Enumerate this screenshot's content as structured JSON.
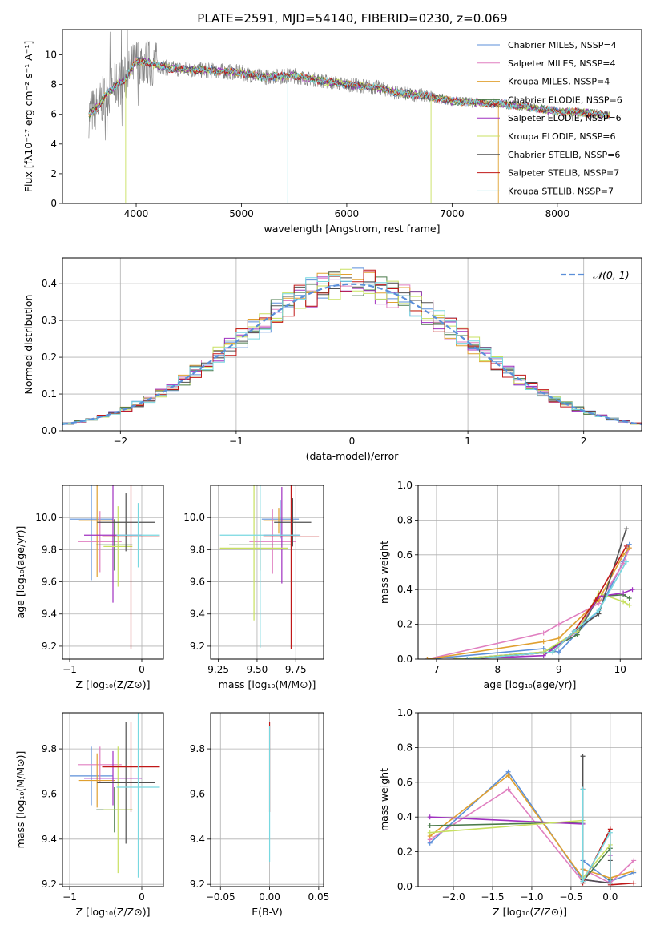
{
  "colors": {
    "c1": "#5b8fd9",
    "c2": "#e07fc0",
    "c3": "#e0a030",
    "c4": "#4a7a4a",
    "c5": "#a030c0",
    "c6": "#c8e060",
    "c7": "#505050",
    "c8": "#c01818",
    "c9": "#78d8e0",
    "data": "#808080",
    "normal": "#5b8fd9"
  },
  "chart_data": [
    {
      "type": "line",
      "id": "spectrum",
      "title": "PLATE=2591, MJD=54140, FIBERID=0230, z=0.069",
      "xlabel": "wavelength [Angstrom, rest frame]",
      "ylabel": "Flux [fλ10⁻¹⁷ erg cm⁻² s⁻¹ A⁻¹]",
      "xlim": [
        3300,
        8800
      ],
      "ylim": [
        0,
        11.7
      ],
      "xticks": [
        "4000",
        "5000",
        "6000",
        "7000",
        "8000"
      ],
      "yticks": [
        "0",
        "2",
        "4",
        "6",
        "8",
        "10"
      ],
      "legend_position": "top-right",
      "series": [
        {
          "name": "Chabrier MILES, NSSP=4",
          "color_key": "c1"
        },
        {
          "name": "Salpeter MILES, NSSP=4",
          "color_key": "c2"
        },
        {
          "name": "Kroupa MILES, NSSP=4",
          "color_key": "c3"
        },
        {
          "name": "Chabrier ELODIE, NSSP=6",
          "color_key": "c4"
        },
        {
          "name": "Salpeter ELODIE, NSSP=6",
          "color_key": "c5"
        },
        {
          "name": "Kroupa ELODIE, NSSP=6",
          "color_key": "c6"
        },
        {
          "name": "Chabrier STELIB, NSSP=6",
          "color_key": "c7"
        },
        {
          "name": "Salpeter STELIB, NSSP=7",
          "color_key": "c8"
        },
        {
          "name": "Kroupa STELIB, NSSP=7",
          "color_key": "c9"
        }
      ],
      "continuum": {
        "x": [
          3550,
          3650,
          3700,
          3800,
          3900,
          4000,
          4100,
          4300,
          4500,
          4800,
          5000,
          5200,
          5500,
          5800,
          6000,
          6300,
          6500,
          6700,
          7000,
          7200,
          7500,
          8000,
          8300,
          8500
        ],
        "y": [
          6.0,
          6.6,
          7.2,
          7.9,
          8.4,
          9.6,
          9.5,
          9.1,
          9.0,
          8.9,
          8.8,
          8.5,
          8.6,
          8.2,
          8.0,
          7.8,
          7.4,
          7.3,
          6.9,
          6.8,
          6.7,
          6.2,
          6.1,
          5.9
        ]
      },
      "spikes": [
        {
          "x": 3900,
          "y": 0.0
        },
        {
          "x": 5440,
          "y": 0.0
        },
        {
          "x": 6800,
          "y": 0.0
        },
        {
          "x": 7440,
          "y": 0.0
        }
      ]
    },
    {
      "type": "bar",
      "id": "residuals",
      "xlabel": "(data-model)/error",
      "ylabel": "Normed distribution",
      "xlim": [
        -2.5,
        2.5
      ],
      "ylim": [
        0,
        0.47
      ],
      "xticks": [
        "−2",
        "−1",
        "0",
        "1",
        "2"
      ],
      "yticks": [
        "0.0",
        "0.1",
        "0.2",
        "0.3",
        "0.4"
      ],
      "legend": "𝒩(0, 1)",
      "legend_position": "top-right",
      "bin_width": 0.1
    },
    {
      "type": "scatter",
      "id": "age_vs_Z",
      "xlabel": "Z [log₁₀(Z/Z⊙)]",
      "ylabel": "age  [log₁₀(age/yr)]",
      "xlim": [
        -1.1,
        0.3
      ],
      "ylim": [
        9.12,
        10.2
      ],
      "xticks": [
        "−1",
        "0"
      ],
      "yticks": [
        "9.2",
        "9.4",
        "9.6",
        "9.8",
        "10.0"
      ],
      "points": [
        {
          "x": -0.7,
          "y": 9.99,
          "xerr": 0.3,
          "yerr": 0.38,
          "color_key": "c1"
        },
        {
          "x": -0.58,
          "y": 9.85,
          "xerr": 0.3,
          "yerr": 0.19,
          "color_key": "c2"
        },
        {
          "x": -0.62,
          "y": 9.98,
          "xerr": 0.25,
          "yerr": 0.35,
          "color_key": "c3"
        },
        {
          "x": -0.38,
          "y": 9.83,
          "xerr": 0.25,
          "yerr": 0.16,
          "color_key": "c4"
        },
        {
          "x": -0.4,
          "y": 9.89,
          "xerr": 0.4,
          "yerr": 0.42,
          "color_key": "c5"
        },
        {
          "x": -0.33,
          "y": 9.82,
          "xerr": 0.2,
          "yerr": 0.25,
          "color_key": "c6"
        },
        {
          "x": -0.22,
          "y": 9.97,
          "xerr": 0.4,
          "yerr": 0.18,
          "color_key": "c7"
        },
        {
          "x": -0.15,
          "y": 9.88,
          "xerr": 0.4,
          "yerr": 0.7,
          "color_key": "c8"
        },
        {
          "x": -0.05,
          "y": 9.89,
          "xerr": 0.3,
          "yerr": 0.2,
          "color_key": "c9"
        }
      ]
    },
    {
      "type": "scatter",
      "id": "age_vs_mass",
      "xlabel": "mass [log₁₀(M/M⊙)]",
      "xlim": [
        9.2,
        9.93
      ],
      "ylim": [
        9.12,
        10.2
      ],
      "xticks": [
        "9.25",
        "9.50",
        "9.75"
      ],
      "yticks": [
        "9.2",
        "9.4",
        "9.6",
        "9.8",
        "10.0"
      ],
      "points": [
        {
          "x": 9.65,
          "y": 9.99,
          "xerr": 0.12,
          "yerr": 0.12,
          "color_key": "c1"
        },
        {
          "x": 9.6,
          "y": 9.85,
          "xerr": 0.15,
          "yerr": 0.2,
          "color_key": "c2"
        },
        {
          "x": 9.64,
          "y": 9.98,
          "xerr": 0.1,
          "yerr": 0.08,
          "color_key": "c3"
        },
        {
          "x": 9.52,
          "y": 9.83,
          "xerr": 0.2,
          "yerr": 0.16,
          "color_key": "c4"
        },
        {
          "x": 9.66,
          "y": 9.89,
          "xerr": 0.12,
          "yerr": 0.3,
          "color_key": "c5"
        },
        {
          "x": 9.48,
          "y": 9.81,
          "xerr": 0.22,
          "yerr": 0.45,
          "color_key": "c6"
        },
        {
          "x": 9.73,
          "y": 9.97,
          "xerr": 0.12,
          "yerr": 0.15,
          "color_key": "c7"
        },
        {
          "x": 9.72,
          "y": 9.88,
          "xerr": 0.18,
          "yerr": 0.7,
          "color_key": "c8"
        },
        {
          "x": 9.52,
          "y": 9.89,
          "xerr": 0.26,
          "yerr": 0.7,
          "color_key": "c9"
        }
      ]
    },
    {
      "type": "line",
      "id": "mass_weight_vs_age",
      "xlabel": "age  [log₁₀(age/yr)]",
      "ylabel": "mass weight",
      "xlim": [
        6.7,
        10.35
      ],
      "ylim": [
        0,
        1.0
      ],
      "xticks": [
        "7",
        "8",
        "9",
        "10"
      ],
      "yticks": [
        "0.0",
        "0.2",
        "0.4",
        "0.6",
        "0.8",
        "1.0"
      ],
      "series": [
        {
          "color_key": "c1",
          "x": [
            6.85,
            8.75,
            9.0,
            9.65,
            10.05,
            10.15
          ],
          "y": [
            0.0,
            0.06,
            0.04,
            0.28,
            0.56,
            0.66
          ]
        },
        {
          "color_key": "c2",
          "x": [
            6.85,
            8.75,
            9.0,
            9.65,
            10.05,
            10.15
          ],
          "y": [
            0.0,
            0.15,
            0.2,
            0.32,
            0.55,
            0.64
          ]
        },
        {
          "color_key": "c3",
          "x": [
            6.85,
            8.75,
            9.0,
            9.65,
            10.05,
            10.15
          ],
          "y": [
            0.0,
            0.1,
            0.12,
            0.34,
            0.6,
            0.64
          ]
        },
        {
          "color_key": "c4",
          "x": [
            7.3,
            8.75,
            9.3,
            9.65,
            10.05,
            10.15
          ],
          "y": [
            0.0,
            0.04,
            0.14,
            0.36,
            0.37,
            0.35
          ]
        },
        {
          "color_key": "c5",
          "x": [
            7.3,
            8.75,
            9.3,
            9.65,
            10.05,
            10.2
          ],
          "y": [
            0.0,
            0.02,
            0.16,
            0.36,
            0.38,
            0.4
          ]
        },
        {
          "color_key": "c6",
          "x": [
            7.3,
            8.75,
            9.3,
            9.65,
            10.05,
            10.15
          ],
          "y": [
            0.0,
            0.04,
            0.16,
            0.38,
            0.33,
            0.31
          ]
        },
        {
          "color_key": "c7",
          "x": [
            7.5,
            8.9,
            9.25,
            9.65,
            10.1
          ],
          "y": [
            0.0,
            0.04,
            0.16,
            0.26,
            0.75
          ]
        },
        {
          "color_key": "c8",
          "x": [
            7.5,
            8.9,
            9.25,
            9.6,
            10.1
          ],
          "y": [
            0.0,
            0.04,
            0.16,
            0.34,
            0.65
          ]
        },
        {
          "color_key": "c9",
          "x": [
            7.5,
            8.9,
            9.25,
            9.65,
            10.1
          ],
          "y": [
            0.0,
            0.04,
            0.16,
            0.28,
            0.56
          ]
        }
      ]
    },
    {
      "type": "scatter",
      "id": "mass_vs_Z",
      "xlabel": "Z [log₁₀(Z/Z⊙)]",
      "ylabel": "mass [log₁₀(M/M⊙)]",
      "xlim": [
        -1.1,
        0.3
      ],
      "ylim": [
        9.19,
        9.96
      ],
      "xticks": [
        "−1",
        "0"
      ],
      "yticks": [
        "9.2",
        "9.4",
        "9.6",
        "9.8"
      ],
      "points": [
        {
          "x": -0.7,
          "y": 9.68,
          "xerr": 0.3,
          "yerr": 0.13,
          "color_key": "c1"
        },
        {
          "x": -0.58,
          "y": 9.73,
          "xerr": 0.3,
          "yerr": 0.08,
          "color_key": "c2"
        },
        {
          "x": -0.62,
          "y": 9.66,
          "xerr": 0.25,
          "yerr": 0.12,
          "color_key": "c3"
        },
        {
          "x": -0.38,
          "y": 9.53,
          "xerr": 0.25,
          "yerr": 0.1,
          "color_key": "c4"
        },
        {
          "x": -0.4,
          "y": 9.67,
          "xerr": 0.4,
          "yerr": 0.12,
          "color_key": "c5"
        },
        {
          "x": -0.33,
          "y": 9.53,
          "xerr": 0.2,
          "yerr": 0.28,
          "color_key": "c6"
        },
        {
          "x": -0.22,
          "y": 9.65,
          "xerr": 0.4,
          "yerr": 0.27,
          "color_key": "c7"
        },
        {
          "x": -0.15,
          "y": 9.72,
          "xerr": 0.4,
          "yerr": 0.2,
          "color_key": "c8"
        },
        {
          "x": -0.05,
          "y": 9.63,
          "xerr": 0.3,
          "yerr": 0.4,
          "color_key": "c9"
        }
      ]
    },
    {
      "type": "scatter",
      "id": "mass_vs_EBV",
      "xlabel": "E(B-V)",
      "xlim": [
        -0.06,
        0.055
      ],
      "ylim": [
        9.19,
        9.96
      ],
      "xticks": [
        "−0.05",
        "0.00",
        "0.05"
      ],
      "yticks": [
        "9.2",
        "9.4",
        "9.6",
        "9.8"
      ],
      "points": [
        {
          "x": 0.0,
          "y": 9.72,
          "xerr": 0.0,
          "yerr": 0.2,
          "color_key": "c8"
        },
        {
          "x": 0.0,
          "y": 9.6,
          "xerr": 0.0,
          "yerr": 0.3,
          "color_key": "c9"
        }
      ]
    },
    {
      "type": "line",
      "id": "mass_weight_vs_Z",
      "xlabel": "Z [log₁₀(Z/Z⊙)]",
      "ylabel": "mass weight",
      "xlim": [
        -2.45,
        0.4
      ],
      "ylim": [
        0,
        1.0
      ],
      "xticks": [
        "−2.0",
        "−1.5",
        "−1.0",
        "−0.5",
        "0.0"
      ],
      "yticks": [
        "0.0",
        "0.2",
        "0.4",
        "0.6",
        "0.8",
        "1.0"
      ],
      "series": [
        {
          "color_key": "c1",
          "x": [
            -2.3,
            -1.3,
            -0.35,
            -0.35,
            0.0,
            0.3
          ],
          "y": [
            0.25,
            0.66,
            0.04,
            0.15,
            0.03,
            0.08
          ]
        },
        {
          "color_key": "c2",
          "x": [
            -2.3,
            -1.3,
            -0.35,
            -0.35,
            0.0,
            0.3
          ],
          "y": [
            0.27,
            0.56,
            0.03,
            0.1,
            0.02,
            0.15
          ]
        },
        {
          "color_key": "c3",
          "x": [
            -2.3,
            -1.3,
            -0.35,
            -0.35,
            0.0,
            0.3
          ],
          "y": [
            0.29,
            0.64,
            0.05,
            0.1,
            0.05,
            0.09
          ]
        },
        {
          "color_key": "c4",
          "x": [
            -2.3,
            -0.35,
            -0.35,
            0.0,
            0.0
          ],
          "y": [
            0.35,
            0.37,
            0.03,
            0.22,
            0.04
          ]
        },
        {
          "color_key": "c5",
          "x": [
            -2.3,
            -0.35,
            -0.35,
            0.0,
            0.0
          ],
          "y": [
            0.4,
            0.36,
            0.04,
            0.02,
            0.18
          ]
        },
        {
          "color_key": "c6",
          "x": [
            -2.3,
            -0.35,
            -0.35,
            0.0,
            0.0
          ],
          "y": [
            0.31,
            0.38,
            0.05,
            0.24,
            0.02
          ]
        },
        {
          "color_key": "c7",
          "x": [
            -0.35,
            -0.35,
            0.0,
            0.0
          ],
          "y": [
            0.75,
            0.04,
            0.02,
            0.15
          ]
        },
        {
          "color_key": "c8",
          "x": [
            -0.35,
            -0.35,
            0.0,
            0.0,
            0.3
          ],
          "y": [
            0.56,
            0.02,
            0.33,
            0.01,
            0.02
          ]
        },
        {
          "color_key": "c9",
          "x": [
            -0.35,
            -0.35,
            0.0,
            0.0
          ],
          "y": [
            0.56,
            0.03,
            0.31,
            0.02
          ]
        }
      ]
    }
  ]
}
